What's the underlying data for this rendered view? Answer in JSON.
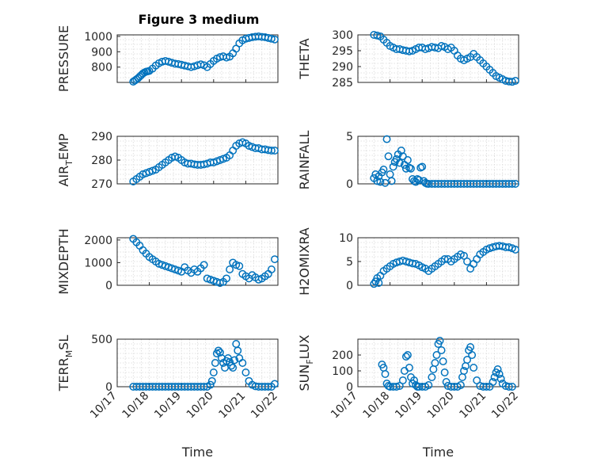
{
  "figure_title": "Figure 3 medium",
  "colors": {
    "marker": "#0072bd",
    "axis": "#262626",
    "grid": "#d9d9d9"
  },
  "chart_data": [
    {
      "type": "scatter",
      "ylabel": "PRESSURE",
      "xlabel": "",
      "ylim": [
        700,
        1010
      ],
      "yticks": [
        800,
        900,
        1000
      ],
      "xlim": [
        0,
        5
      ],
      "grid": true,
      "x": [
        0.5,
        0.55,
        0.6,
        0.65,
        0.7,
        0.75,
        0.8,
        0.85,
        0.9,
        0.95,
        1.0,
        1.1,
        1.2,
        1.3,
        1.4,
        1.5,
        1.6,
        1.7,
        1.8,
        1.9,
        2.0,
        2.1,
        2.2,
        2.3,
        2.4,
        2.5,
        2.6,
        2.7,
        2.8,
        2.9,
        3.0,
        3.1,
        3.2,
        3.3,
        3.4,
        3.5,
        3.6,
        3.7,
        3.8,
        3.9,
        4.0,
        4.1,
        4.2,
        4.3,
        4.4,
        4.5,
        4.6,
        4.7,
        4.8,
        4.9
      ],
      "y": [
        705,
        712,
        720,
        728,
        738,
        748,
        758,
        765,
        770,
        772,
        775,
        790,
        810,
        825,
        835,
        840,
        835,
        828,
        822,
        820,
        815,
        810,
        805,
        800,
        805,
        812,
        818,
        812,
        800,
        820,
        840,
        855,
        865,
        870,
        862,
        868,
        890,
        920,
        955,
        975,
        985,
        990,
        995,
        998,
        1000,
        997,
        995,
        990,
        985,
        980
      ]
    },
    {
      "type": "scatter",
      "ylabel": "THETA",
      "xlabel": "",
      "ylim": [
        285,
        300
      ],
      "yticks": [
        285,
        290,
        295,
        300
      ],
      "xlim": [
        0,
        5
      ],
      "grid": true,
      "x": [
        0.5,
        0.6,
        0.7,
        0.8,
        0.9,
        1.0,
        1.1,
        1.2,
        1.3,
        1.4,
        1.5,
        1.6,
        1.7,
        1.8,
        1.9,
        2.0,
        2.1,
        2.2,
        2.3,
        2.4,
        2.5,
        2.6,
        2.7,
        2.8,
        2.9,
        3.0,
        3.1,
        3.2,
        3.3,
        3.4,
        3.5,
        3.6,
        3.7,
        3.8,
        3.9,
        4.0,
        4.1,
        4.2,
        4.3,
        4.4,
        4.5,
        4.6,
        4.7,
        4.8,
        4.9
      ],
      "y": [
        300,
        299.8,
        299.5,
        298.5,
        297.5,
        296.5,
        296,
        295.5,
        295.5,
        295.2,
        295,
        294.8,
        295,
        295.5,
        296,
        296,
        295.5,
        295.8,
        296.2,
        296,
        295.8,
        296.5,
        296.2,
        295.5,
        296,
        295,
        293.5,
        292.5,
        292,
        292.5,
        293,
        294,
        293,
        292,
        291,
        290,
        289,
        288,
        287,
        286.5,
        286,
        285.5,
        285.3,
        285.2,
        285.5
      ]
    },
    {
      "type": "scatter",
      "ylabel": "AIR_TEMP",
      "xlabel": "",
      "ylim": [
        270,
        290
      ],
      "yticks": [
        270,
        280,
        290
      ],
      "xlim": [
        0,
        5
      ],
      "grid": true,
      "x": [
        0.5,
        0.6,
        0.7,
        0.8,
        0.9,
        1.0,
        1.1,
        1.2,
        1.3,
        1.4,
        1.5,
        1.6,
        1.7,
        1.8,
        1.9,
        2.0,
        2.1,
        2.2,
        2.3,
        2.4,
        2.5,
        2.6,
        2.7,
        2.8,
        2.9,
        3.0,
        3.1,
        3.2,
        3.3,
        3.4,
        3.5,
        3.6,
        3.7,
        3.8,
        3.9,
        4.0,
        4.1,
        4.2,
        4.3,
        4.4,
        4.5,
        4.6,
        4.7,
        4.8,
        4.9
      ],
      "y": [
        271,
        272,
        273,
        274,
        274.5,
        275,
        275.5,
        276,
        277,
        278,
        279,
        280,
        281,
        281.5,
        281,
        280,
        279,
        278.5,
        278.5,
        278.2,
        278,
        278,
        278.2,
        278.5,
        279,
        279,
        279.5,
        280,
        280.5,
        281,
        282,
        284,
        286,
        287,
        287.5,
        287,
        286,
        285.5,
        285,
        285,
        284.5,
        284.5,
        284.2,
        284,
        284
      ]
    },
    {
      "type": "scatter",
      "ylabel": "RAINFALL",
      "xlabel": "",
      "ylim": [
        0,
        5
      ],
      "yticks": [
        0,
        5
      ],
      "xlim": [
        0,
        5
      ],
      "grid": true,
      "x": [
        0.5,
        0.55,
        0.6,
        0.65,
        0.7,
        0.75,
        0.8,
        0.85,
        0.9,
        0.95,
        1.0,
        1.05,
        1.1,
        1.15,
        1.2,
        1.25,
        1.3,
        1.35,
        1.4,
        1.45,
        1.5,
        1.55,
        1.6,
        1.65,
        1.7,
        1.75,
        1.8,
        1.85,
        1.9,
        1.95,
        2.0,
        2.05,
        2.1,
        2.15,
        2.2,
        2.3,
        2.4,
        2.5,
        2.6,
        2.7,
        2.8,
        2.9,
        3.0,
        3.1,
        3.2,
        3.3,
        3.4,
        3.5,
        3.6,
        3.7,
        3.8,
        3.9,
        4.0,
        4.1,
        4.2,
        4.3,
        4.4,
        4.5,
        4.6,
        4.7,
        4.8,
        4.9
      ],
      "y": [
        0.6,
        1.0,
        0.3,
        0.8,
        0.2,
        1.2,
        1.5,
        0.1,
        4.7,
        2.9,
        1.0,
        0.3,
        1.8,
        2.3,
        2.6,
        3.1,
        2.2,
        3.5,
        2.9,
        2.0,
        1.6,
        2.5,
        1.7,
        1.6,
        0.5,
        0.3,
        0.2,
        0.5,
        0.4,
        1.7,
        1.8,
        0.3,
        0.1,
        0.02,
        0,
        0,
        0,
        0,
        0,
        0,
        0,
        0,
        0,
        0,
        0,
        0,
        0,
        0,
        0,
        0,
        0,
        0,
        0,
        0,
        0,
        0,
        0,
        0,
        0,
        0,
        0,
        0
      ]
    },
    {
      "type": "scatter",
      "ylabel": "MIXDEPTH",
      "xlabel": "",
      "ylim": [
        0,
        2100
      ],
      "yticks": [
        0,
        1000,
        2000
      ],
      "xlim": [
        0,
        5
      ],
      "grid": true,
      "x": [
        0.5,
        0.6,
        0.7,
        0.8,
        0.9,
        1.0,
        1.1,
        1.2,
        1.3,
        1.4,
        1.5,
        1.6,
        1.7,
        1.8,
        1.9,
        2.0,
        2.1,
        2.2,
        2.3,
        2.4,
        2.5,
        2.6,
        2.7,
        2.8,
        2.9,
        3.0,
        3.1,
        3.2,
        3.3,
        3.4,
        3.5,
        3.6,
        3.7,
        3.8,
        3.9,
        4.0,
        4.1,
        4.2,
        4.3,
        4.4,
        4.5,
        4.6,
        4.7,
        4.8,
        4.9
      ],
      "y": [
        2050,
        1900,
        1750,
        1550,
        1400,
        1250,
        1150,
        1050,
        950,
        900,
        850,
        800,
        750,
        700,
        650,
        600,
        800,
        650,
        550,
        700,
        600,
        750,
        900,
        300,
        250,
        200,
        150,
        100,
        150,
        300,
        700,
        1000,
        900,
        850,
        500,
        400,
        300,
        450,
        350,
        250,
        300,
        400,
        500,
        700,
        1150
      ]
    },
    {
      "type": "scatter",
      "ylabel": "H2OMIXRA",
      "xlabel": "",
      "ylim": [
        0,
        10
      ],
      "yticks": [
        0,
        5,
        10
      ],
      "xlim": [
        0,
        5
      ],
      "grid": true,
      "x": [
        0.5,
        0.55,
        0.6,
        0.65,
        0.7,
        0.8,
        0.9,
        1.0,
        1.1,
        1.2,
        1.3,
        1.4,
        1.5,
        1.6,
        1.7,
        1.8,
        1.9,
        2.0,
        2.1,
        2.2,
        2.3,
        2.4,
        2.5,
        2.6,
        2.7,
        2.8,
        2.9,
        3.0,
        3.1,
        3.2,
        3.3,
        3.4,
        3.5,
        3.6,
        3.7,
        3.8,
        3.9,
        4.0,
        4.1,
        4.2,
        4.3,
        4.4,
        4.5,
        4.6,
        4.7,
        4.8,
        4.9
      ],
      "y": [
        0.3,
        0.8,
        1.5,
        0.5,
        2.0,
        3.0,
        3.5,
        4.0,
        4.5,
        4.8,
        5.0,
        5.2,
        5.0,
        4.8,
        4.6,
        4.5,
        4.2,
        3.8,
        3.5,
        3.0,
        3.5,
        4.0,
        4.5,
        5.0,
        5.5,
        5.5,
        5.0,
        5.5,
        6.0,
        6.5,
        6.2,
        5.0,
        3.5,
        4.5,
        5.5,
        6.5,
        7.0,
        7.5,
        7.8,
        8.0,
        8.2,
        8.3,
        8.2,
        8.0,
        8.0,
        7.8,
        7.5
      ]
    },
    {
      "type": "scatter",
      "ylabel": "TERR_MSL",
      "xlabel": "Time",
      "ylim": [
        0,
        500
      ],
      "yticks": [
        0,
        500
      ],
      "xlim": [
        0,
        5
      ],
      "grid": true,
      "xticklabels": [
        "10/17",
        "10/18",
        "10/19",
        "10/20",
        "10/21",
        "10/22"
      ],
      "x": [
        0.5,
        0.6,
        0.7,
        0.8,
        0.9,
        1.0,
        1.1,
        1.2,
        1.3,
        1.4,
        1.5,
        1.6,
        1.7,
        1.8,
        1.9,
        2.0,
        2.1,
        2.2,
        2.3,
        2.4,
        2.5,
        2.6,
        2.7,
        2.8,
        2.9,
        2.95,
        3.0,
        3.05,
        3.1,
        3.15,
        3.2,
        3.25,
        3.3,
        3.35,
        3.4,
        3.45,
        3.5,
        3.55,
        3.6,
        3.65,
        3.7,
        3.75,
        3.8,
        3.9,
        4.0,
        4.1,
        4.2,
        4.3,
        4.4,
        4.5,
        4.6,
        4.7,
        4.8,
        4.9
      ],
      "y": [
        0,
        0,
        0,
        0,
        0,
        0,
        0,
        0,
        0,
        0,
        0,
        0,
        0,
        0,
        0,
        0,
        0,
        0,
        0,
        0,
        0,
        0,
        0,
        0,
        20,
        60,
        150,
        250,
        350,
        380,
        360,
        300,
        250,
        200,
        270,
        300,
        260,
        220,
        200,
        280,
        450,
        380,
        300,
        250,
        150,
        60,
        20,
        5,
        0,
        0,
        0,
        0,
        0,
        30
      ]
    },
    {
      "type": "scatter",
      "ylabel": "SUN_FLUX",
      "xlabel": "Time",
      "ylim": [
        0,
        300
      ],
      "yticks": [
        0,
        100,
        200
      ],
      "xlim": [
        0,
        5
      ],
      "grid": true,
      "xticklabels": [
        "10/17",
        "10/18",
        "10/19",
        "10/20",
        "10/21",
        "10/22"
      ],
      "x": [
        0.75,
        0.8,
        0.85,
        0.9,
        0.95,
        1.0,
        1.1,
        1.2,
        1.3,
        1.4,
        1.45,
        1.5,
        1.55,
        1.6,
        1.65,
        1.7,
        1.75,
        1.8,
        1.85,
        1.9,
        2.0,
        2.1,
        2.2,
        2.3,
        2.35,
        2.4,
        2.45,
        2.5,
        2.55,
        2.6,
        2.65,
        2.7,
        2.75,
        2.8,
        2.9,
        3.0,
        3.1,
        3.2,
        3.25,
        3.3,
        3.35,
        3.4,
        3.45,
        3.5,
        3.55,
        3.6,
        3.7,
        3.8,
        3.9,
        4.0,
        4.1,
        4.2,
        4.25,
        4.3,
        4.35,
        4.4,
        4.45,
        4.5,
        4.6,
        4.7,
        4.8
      ],
      "y": [
        140,
        120,
        80,
        20,
        5,
        0,
        0,
        0,
        5,
        40,
        100,
        190,
        200,
        120,
        60,
        20,
        40,
        10,
        0,
        0,
        0,
        0,
        10,
        60,
        110,
        150,
        200,
        270,
        290,
        230,
        160,
        90,
        30,
        5,
        0,
        0,
        0,
        10,
        60,
        100,
        130,
        170,
        230,
        250,
        200,
        120,
        40,
        5,
        0,
        0,
        0,
        30,
        60,
        90,
        110,
        80,
        50,
        20,
        5,
        0,
        0
      ]
    }
  ]
}
